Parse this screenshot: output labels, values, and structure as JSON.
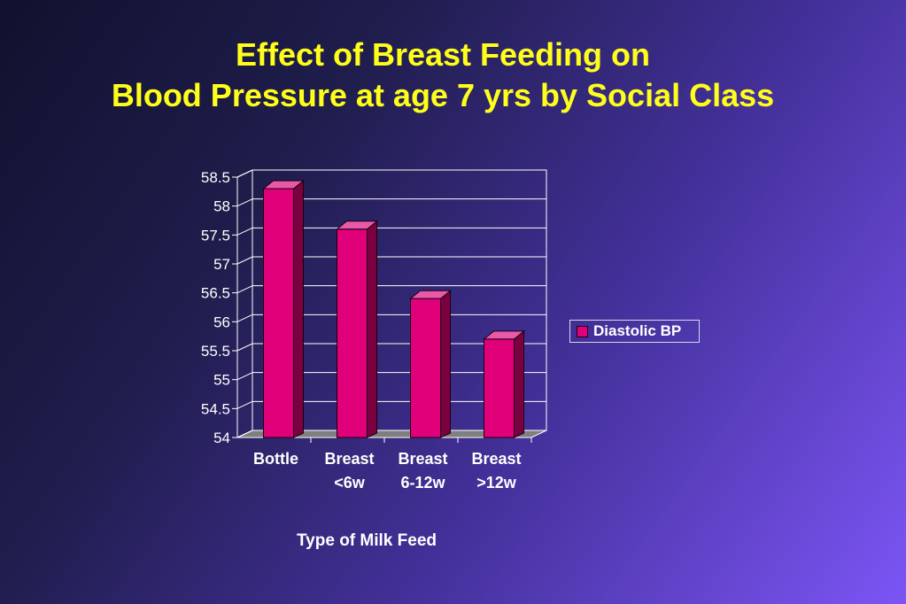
{
  "slide": {
    "title_line1": "Effect of Breast Feeding on",
    "title_line2": "Blood Pressure at age 7 yrs by Social Class"
  },
  "chart_data": {
    "type": "bar",
    "title": "Effect of Breast Feeding on Blood Pressure at age 7 yrs by Social Class",
    "xlabel": "Type of Milk Feed",
    "ylabel": "",
    "categories": [
      [
        "Bottle"
      ],
      [
        "Breast",
        "<6w"
      ],
      [
        "Breast",
        "6-12w"
      ],
      [
        "Breast",
        ">12w"
      ]
    ],
    "series": [
      {
        "name": "Diastolic BP",
        "values": [
          58.3,
          57.6,
          56.4,
          55.7
        ]
      }
    ],
    "ylim": [
      54,
      58.5
    ],
    "yticks": [
      "54",
      "54.5",
      "55",
      "55.5",
      "56",
      "56.5",
      "57",
      "57.5",
      "58",
      "58.5"
    ],
    "bar_color": "#e0007a",
    "grid": true,
    "legend_position": "right",
    "three_d": true
  }
}
